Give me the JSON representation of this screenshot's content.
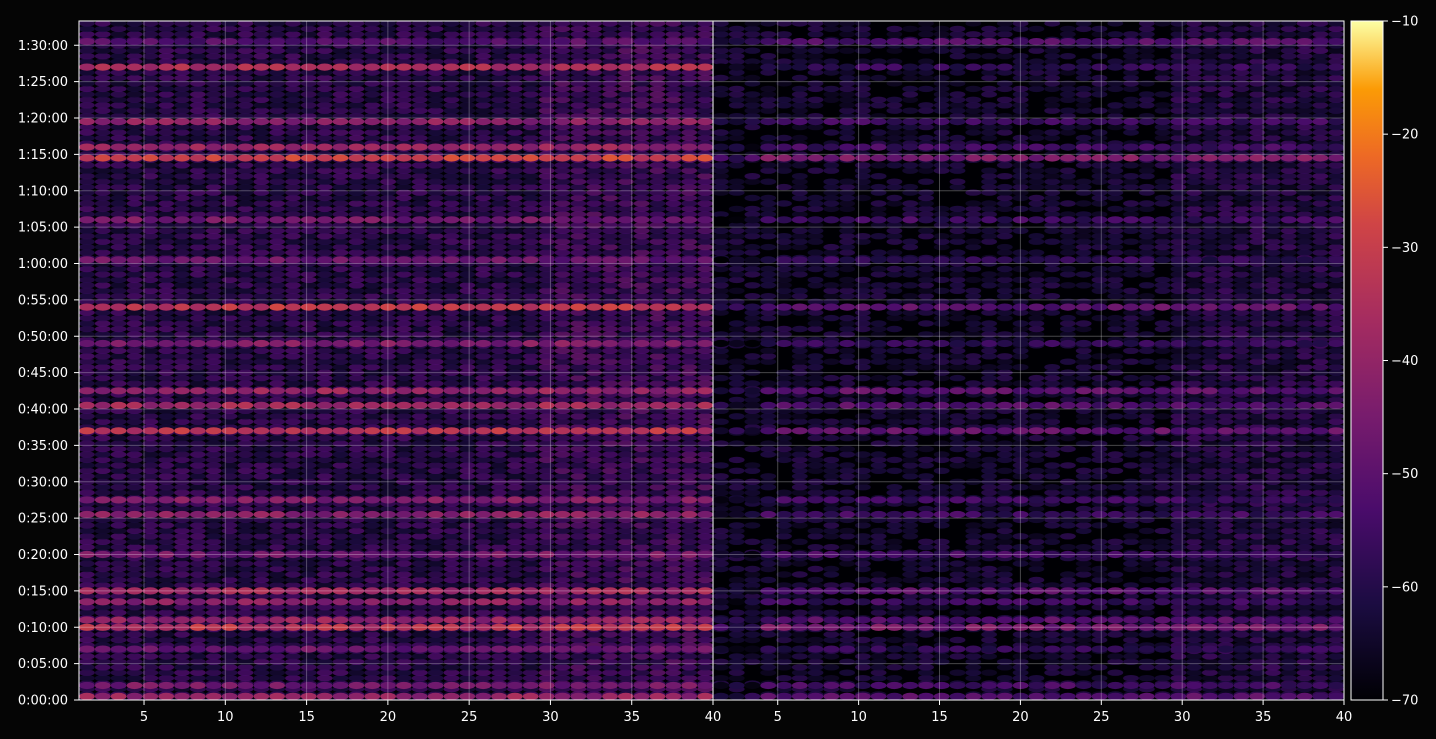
{
  "chart_data": {
    "type": "heatmap",
    "title": "",
    "xlabel": "",
    "ylabel": "",
    "colormap": "inferno",
    "background": "#050505",
    "grid": true,
    "panels": [
      {
        "name": "",
        "xlim": [
          1,
          40
        ],
        "x_ticks": [
          5,
          10,
          15,
          20,
          25,
          30,
          35,
          40
        ],
        "x_tick_labels": [
          "5",
          "10",
          "15",
          "20",
          "25",
          "30",
          "35",
          "40"
        ]
      },
      {
        "name": "",
        "xlim": [
          1,
          40
        ],
        "x_ticks": [
          5,
          10,
          15,
          20,
          25,
          30,
          35,
          40
        ],
        "x_tick_labels": [
          "5",
          "10",
          "15",
          "20",
          "25",
          "30",
          "35",
          "40"
        ]
      }
    ],
    "ylim_seconds": [
      0,
      5600
    ],
    "y_ticks_seconds": [
      0,
      300,
      600,
      900,
      1200,
      1500,
      1800,
      2100,
      2400,
      2700,
      3000,
      3300,
      3600,
      3900,
      4200,
      4500,
      4800,
      5100,
      5400
    ],
    "y_tick_labels": [
      "0:00:00",
      "0:05:00",
      "0:10:00",
      "0:15:00",
      "0:20:00",
      "0:25:00",
      "0:30:00",
      "0:35:00",
      "0:40:00",
      "0:45:00",
      "0:50:00",
      "0:55:00",
      "1:00:00",
      "1:05:00",
      "1:10:00",
      "1:15:00",
      "1:20:00",
      "1:25:00",
      "1:30:00"
    ],
    "colorbar": {
      "min": -70,
      "max": -10,
      "ticks": [
        -10,
        -20,
        -30,
        -40,
        -50,
        -60,
        -70
      ],
      "tick_labels": [
        "−10",
        "−20",
        "−30",
        "−40",
        "−50",
        "−60",
        "−70"
      ]
    },
    "value_rows_approx": [
      {
        "time": "0:00:30",
        "left_db": -40,
        "right_db": -52
      },
      {
        "time": "0:02:00",
        "left_db": -46,
        "right_db": -55
      },
      {
        "time": "0:07:00",
        "left_db": -48,
        "right_db": -58
      },
      {
        "time": "0:10:00",
        "left_db": -33,
        "right_db": -46
      },
      {
        "time": "0:11:00",
        "left_db": -40,
        "right_db": -52
      },
      {
        "time": "0:13:30",
        "left_db": -42,
        "right_db": -56
      },
      {
        "time": "0:15:00",
        "left_db": -38,
        "right_db": -52
      },
      {
        "time": "0:20:00",
        "left_db": -46,
        "right_db": -54
      },
      {
        "time": "0:25:30",
        "left_db": -42,
        "right_db": -56
      },
      {
        "time": "0:27:30",
        "left_db": -44,
        "right_db": -56
      },
      {
        "time": "0:37:00",
        "left_db": -33,
        "right_db": -50
      },
      {
        "time": "0:40:30",
        "left_db": -38,
        "right_db": -52
      },
      {
        "time": "0:42:30",
        "left_db": -40,
        "right_db": -50
      },
      {
        "time": "0:49:00",
        "left_db": -44,
        "right_db": -58
      },
      {
        "time": "0:54:00",
        "left_db": -32,
        "right_db": -50
      },
      {
        "time": "1:00:30",
        "left_db": -48,
        "right_db": -58
      },
      {
        "time": "1:06:00",
        "left_db": -46,
        "right_db": -56
      },
      {
        "time": "1:14:30",
        "left_db": -30,
        "right_db": -45
      },
      {
        "time": "1:16:00",
        "left_db": -40,
        "right_db": -55
      },
      {
        "time": "1:19:30",
        "left_db": -42,
        "right_db": -55
      },
      {
        "time": "1:27:00",
        "left_db": -36,
        "right_db": -58
      },
      {
        "time": "1:30:30",
        "left_db": -52,
        "right_db": -52
      }
    ]
  }
}
